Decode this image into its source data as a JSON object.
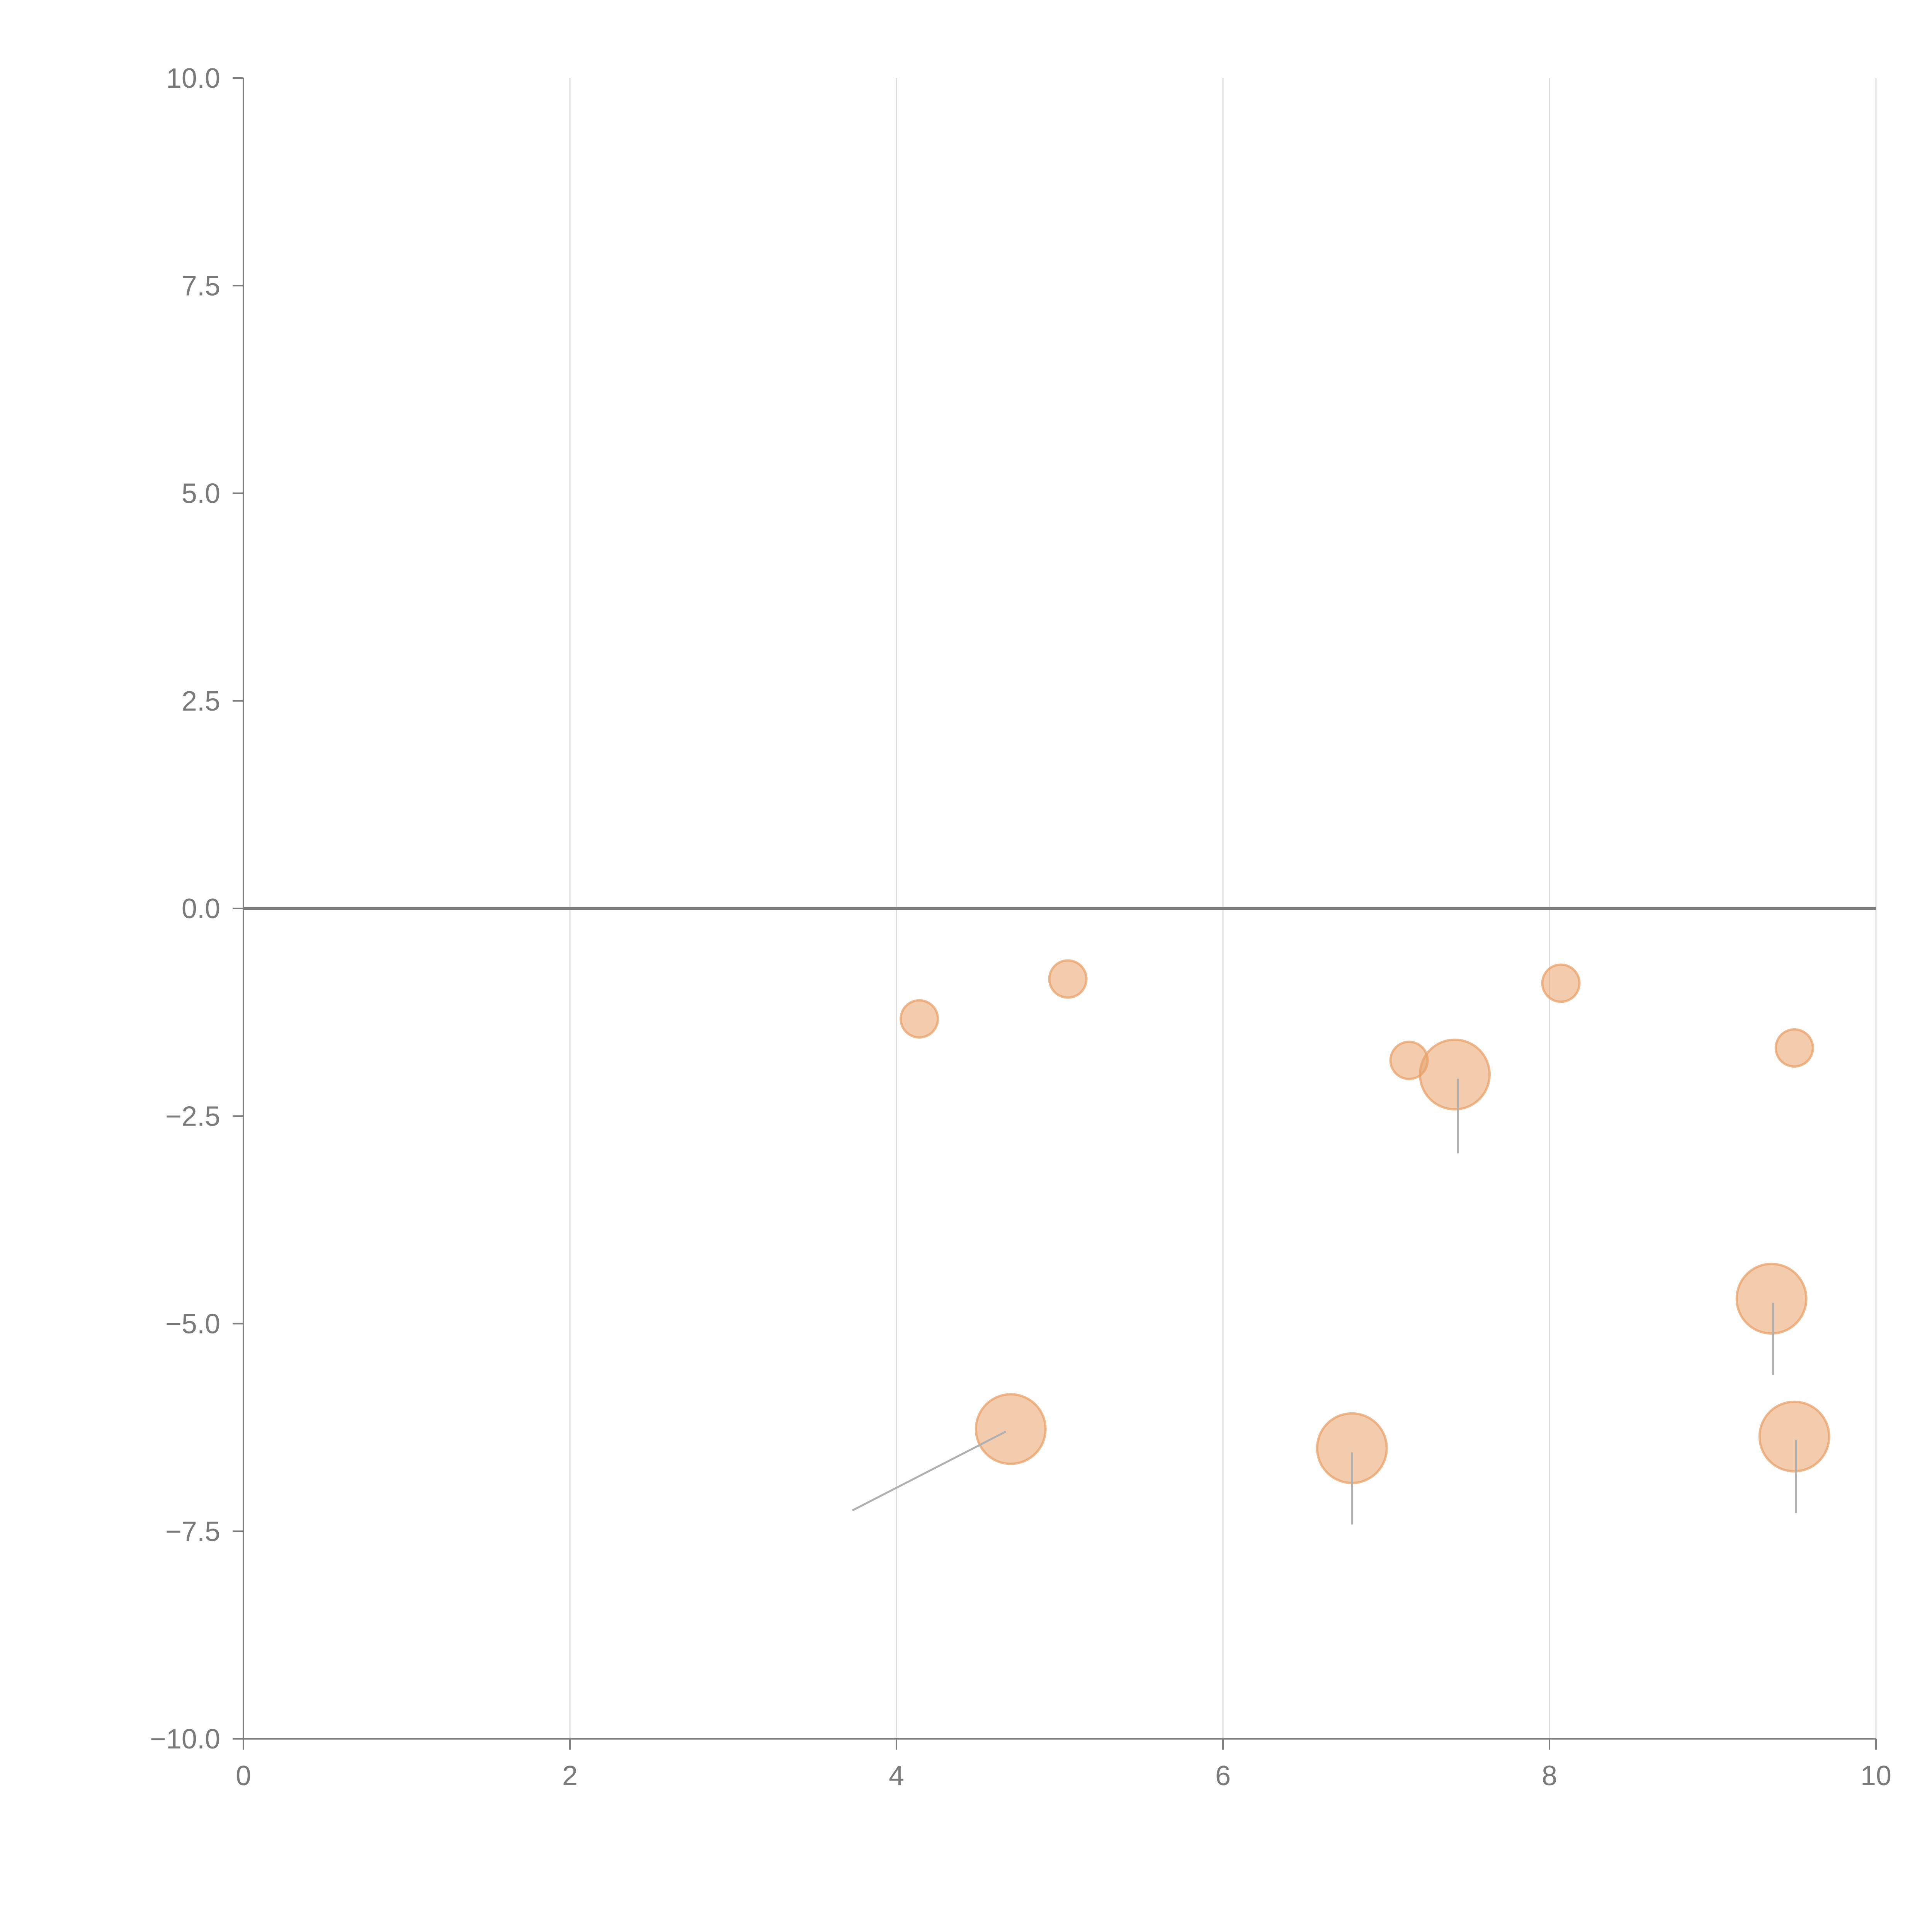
{
  "chart_data": {
    "type": "scatter",
    "title": "",
    "xlabel": "",
    "ylabel": "",
    "xlim": [
      0,
      10
    ],
    "ylim": [
      -10,
      10
    ],
    "x_ticks": [
      "0",
      "2",
      "4",
      "6",
      "8",
      "10"
    ],
    "x_tick_values": [
      0,
      2,
      4,
      6,
      8,
      10
    ],
    "y_ticks": [
      "10.0",
      "7.5",
      "5.0",
      "2.5",
      "0.0",
      "−2.5",
      "−5.0",
      "−7.5",
      "−10.0"
    ],
    "y_tick_values": [
      10,
      7.5,
      5,
      2.5,
      0,
      -2.5,
      -5,
      -7.5,
      -10
    ],
    "vertical_grid": true,
    "horizontal_grid": false,
    "reference_line_y": 0,
    "marker_color": "#e8a26a",
    "marker_opacity": 0.55,
    "points": [
      {
        "x": 4.14,
        "y": -1.33,
        "size": 1
      },
      {
        "x": 5.05,
        "y": -0.85,
        "size": 1
      },
      {
        "x": 8.07,
        "y": -0.9,
        "size": 1
      },
      {
        "x": 7.14,
        "y": -1.83,
        "size": 1
      },
      {
        "x": 9.5,
        "y": -1.68,
        "size": 1
      },
      {
        "x": 7.42,
        "y": -2.0,
        "size": 3,
        "leader": {
          "x1": 7.44,
          "y1": -2.05,
          "x2": 7.44,
          "y2": -2.95
        }
      },
      {
        "x": 9.36,
        "y": -4.7,
        "size": 3,
        "leader": {
          "x1": 9.37,
          "y1": -4.75,
          "x2": 9.37,
          "y2": -5.62
        }
      },
      {
        "x": 4.7,
        "y": -6.27,
        "size": 3,
        "leader": {
          "x1": 4.67,
          "y1": -6.3,
          "x2": 3.73,
          "y2": -7.25
        }
      },
      {
        "x": 6.79,
        "y": -6.5,
        "size": 3,
        "leader": {
          "x1": 6.79,
          "y1": -6.55,
          "x2": 6.79,
          "y2": -7.42
        }
      },
      {
        "x": 9.5,
        "y": -6.36,
        "size": 3,
        "leader": {
          "x1": 9.51,
          "y1": -6.4,
          "x2": 9.51,
          "y2": -7.28
        }
      }
    ]
  }
}
